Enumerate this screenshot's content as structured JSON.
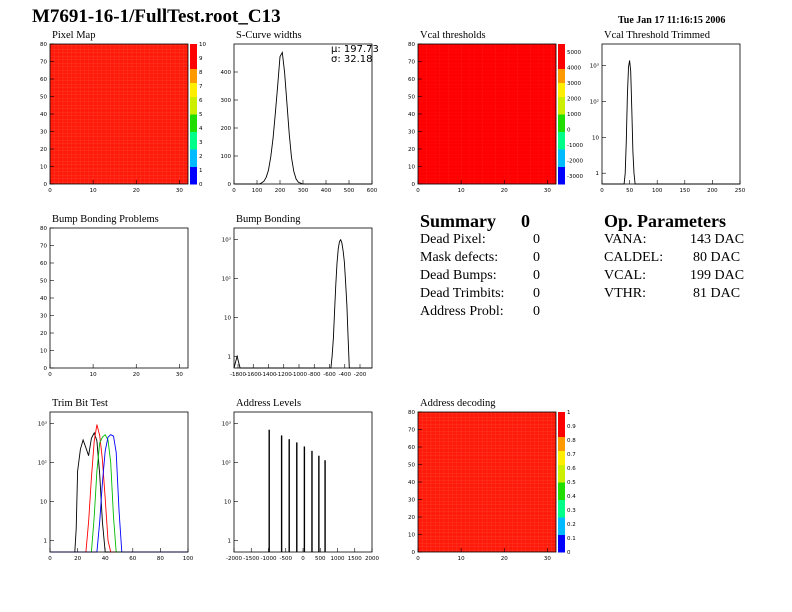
{
  "title": "M7691-16-1/FullTest.root_C13",
  "datestamp": "Tue Jan 17 11:16:15 2006",
  "panels": {
    "pixel_map": "Pixel Map",
    "scurve": "S-Curve widths",
    "vcal_thr": "Vcal thresholds",
    "vcal_trim": "Vcal Threshold Trimmed",
    "bump_problems": "Bump Bonding Problems",
    "bump": "Bump Bonding",
    "trim_bit": "Trim Bit Test",
    "addr_levels": "Address Levels",
    "addr_decoding": "Address decoding"
  },
  "scurve_stats": {
    "mu": "μ: 197.73",
    "sigma": "σ: 32.18"
  },
  "summary": {
    "title": "Summary",
    "total": "0",
    "rows": [
      {
        "label": "Dead Pixel:",
        "value": "0"
      },
      {
        "label": "Mask defects:",
        "value": "0"
      },
      {
        "label": "Dead Bumps:",
        "value": "0"
      },
      {
        "label": "Dead Trimbits:",
        "value": "0"
      },
      {
        "label": "Address Probl:",
        "value": "0"
      }
    ]
  },
  "op_parameters": {
    "title": "Op. Parameters",
    "rows": [
      {
        "label": "VANA:",
        "value": "143 DAC"
      },
      {
        "label": "CALDEL:",
        "value": "80 DAC"
      },
      {
        "label": "VCAL:",
        "value": "199 DAC"
      },
      {
        "label": "VTHR:",
        "value": "81 DAC"
      }
    ]
  },
  "chart_data": [
    {
      "id": "pixel_map",
      "type": "heatmap",
      "title": "Pixel Map",
      "xlim": [
        0,
        32
      ],
      "ylim": [
        0,
        80
      ],
      "zlim": [
        0,
        10
      ],
      "xticks": [
        "0",
        "10",
        "20",
        "30"
      ],
      "yticks": [
        "0",
        "10",
        "20",
        "30",
        "40",
        "50",
        "60",
        "70",
        "80"
      ],
      "zticks": [
        "0",
        "1",
        "2",
        "3",
        "4",
        "5",
        "6",
        "7",
        "8",
        "9",
        "10"
      ],
      "cell_value": 10,
      "uniform": true
    },
    {
      "id": "scurve",
      "type": "line",
      "title": "S-Curve widths",
      "xlim": [
        0,
        600
      ],
      "ylim": [
        0,
        500
      ],
      "xticks": [
        "0",
        "100",
        "200",
        "300",
        "400",
        "500",
        "600"
      ],
      "yticks": [
        "0",
        "100",
        "200",
        "300",
        "400"
      ],
      "series": [
        {
          "color": "#000000",
          "x": [
            0,
            110,
            120,
            130,
            140,
            150,
            160,
            170,
            180,
            190,
            200,
            210,
            220,
            230,
            240,
            250,
            260,
            270,
            280,
            300,
            600
          ],
          "y": [
            0,
            0,
            4,
            10,
            24,
            50,
            98,
            165,
            255,
            352,
            455,
            470,
            398,
            290,
            180,
            95,
            45,
            18,
            6,
            0,
            0
          ]
        }
      ]
    },
    {
      "id": "vcal_thr",
      "type": "heatmap",
      "title": "Vcal thresholds",
      "xlim": [
        0,
        32
      ],
      "ylim": [
        0,
        80
      ],
      "zlim": [
        -3500,
        5500
      ],
      "xticks": [
        "0",
        "10",
        "20",
        "30"
      ],
      "yticks": [
        "0",
        "10",
        "20",
        "30",
        "40",
        "50",
        "60",
        "70",
        "80"
      ],
      "zticks": [
        "-3000",
        "-2000",
        "-1000",
        "0",
        "1000",
        "2000",
        "3000",
        "4000",
        "5000"
      ],
      "cell_value_range": [
        4500,
        5200
      ]
    },
    {
      "id": "vcal_trim",
      "type": "line",
      "title": "Vcal Threshold Trimmed",
      "ylog": true,
      "xlim": [
        0,
        250
      ],
      "ylim": [
        0.5,
        4000
      ],
      "xticks": [
        "0",
        "50",
        "100",
        "150",
        "200",
        "250"
      ],
      "yticks": [
        "1",
        "10",
        "10²",
        "10³"
      ],
      "series": [
        {
          "color": "#000000",
          "x": [
            0,
            40,
            42,
            44,
            46,
            48,
            50,
            52,
            54,
            56,
            58,
            60,
            250
          ],
          "y": [
            0.5,
            0.5,
            1,
            8,
            150,
            900,
            1400,
            700,
            60,
            4,
            1,
            0.5,
            0.5
          ]
        }
      ]
    },
    {
      "id": "bump_problems",
      "type": "heatmap",
      "title": "Bump Bonding Problems",
      "xlim": [
        0,
        32
      ],
      "ylim": [
        0,
        80
      ],
      "xticks": [
        "0",
        "10",
        "20",
        "30"
      ],
      "yticks": [
        "0",
        "10",
        "20",
        "30",
        "40",
        "50",
        "60",
        "70",
        "80"
      ],
      "empty": true
    },
    {
      "id": "bump",
      "type": "line",
      "title": "Bump Bonding",
      "ylog": true,
      "xlim": [
        -2000,
        250
      ],
      "ylim": [
        0.5,
        2000
      ],
      "xticks": [
        "-1800",
        "-1600",
        "-1400",
        "-1200",
        "-1000",
        "-800",
        "-600",
        "-400",
        "-200"
      ],
      "yticks": [
        "1",
        "10",
        "10²",
        "10³"
      ],
      "series": [
        {
          "color": "#000000",
          "x": [
            -2000,
            -1950,
            -1900,
            -1800,
            -600,
            -420,
            -400,
            -380,
            -360,
            -340,
            -320,
            -300,
            -280,
            -260,
            -240,
            -220,
            -200,
            -180,
            -160,
            -140,
            -120,
            250
          ],
          "y": [
            0.5,
            1,
            0.5,
            0.5,
            0.5,
            0.5,
            1,
            3,
            15,
            70,
            250,
            600,
            900,
            1000,
            820,
            500,
            260,
            80,
            20,
            3,
            0.5,
            0.5
          ]
        }
      ]
    },
    {
      "id": "trim_bit",
      "type": "line",
      "title": "Trim Bit Test",
      "ylog": true,
      "xlim": [
        0,
        100
      ],
      "ylim": [
        0.5,
        2000
      ],
      "xticks": [
        "0",
        "20",
        "40",
        "60",
        "80",
        "100"
      ],
      "yticks": [
        "1",
        "10",
        "10²",
        "10³"
      ],
      "series": [
        {
          "color": "#000000",
          "x": [
            0,
            18,
            19,
            20,
            22,
            24,
            26,
            28,
            30,
            32,
            34,
            36,
            38,
            40,
            100
          ],
          "y": [
            0.5,
            0.5,
            2,
            60,
            220,
            380,
            240,
            150,
            420,
            580,
            360,
            50,
            3,
            0.5,
            0.5
          ]
        },
        {
          "color": "#ff0000",
          "x": [
            0,
            26,
            28,
            30,
            32,
            34,
            36,
            38,
            40,
            42,
            44,
            100
          ],
          "y": [
            0.5,
            0.5,
            3,
            40,
            350,
            950,
            500,
            120,
            12,
            1,
            0.5,
            0.5
          ]
        },
        {
          "color": "#00bb00",
          "x": [
            0,
            30,
            32,
            34,
            36,
            38,
            40,
            42,
            44,
            46,
            48,
            100
          ],
          "y": [
            0.5,
            0.5,
            4,
            60,
            320,
            450,
            520,
            380,
            100,
            4,
            0.5,
            0.5
          ]
        },
        {
          "color": "#0000ff",
          "x": [
            0,
            34,
            36,
            38,
            40,
            42,
            44,
            46,
            48,
            50,
            52,
            100
          ],
          "y": [
            0.5,
            0.5,
            3,
            30,
            200,
            450,
            520,
            480,
            180,
            6,
            0.5,
            0.5
          ]
        }
      ]
    },
    {
      "id": "addr_levels",
      "type": "bar",
      "title": "Address Levels",
      "ylog": true,
      "xlim": [
        -2000,
        2000
      ],
      "ylim": [
        0.5,
        2000
      ],
      "xticks": [
        "-2000",
        "-1500",
        "-1000",
        "-500",
        "0",
        "500",
        "1000",
        "1500",
        "2000"
      ],
      "yticks": [
        "1",
        "10",
        "10²",
        "10³"
      ],
      "peaks": [
        {
          "x": -980,
          "y": 700
        },
        {
          "x": -620,
          "y": 500
        },
        {
          "x": -400,
          "y": 400
        },
        {
          "x": -180,
          "y": 330
        },
        {
          "x": 40,
          "y": 260
        },
        {
          "x": 260,
          "y": 200
        },
        {
          "x": 460,
          "y": 150
        },
        {
          "x": 640,
          "y": 115
        }
      ]
    },
    {
      "id": "addr_decoding",
      "type": "heatmap",
      "title": "Address decoding",
      "xlim": [
        0,
        32
      ],
      "ylim": [
        0,
        80
      ],
      "zlim": [
        0,
        1
      ],
      "xticks": [
        "0",
        "10",
        "20",
        "30"
      ],
      "yticks": [
        "0",
        "10",
        "20",
        "30",
        "40",
        "50",
        "60",
        "70",
        "80"
      ],
      "zticks": [
        "0",
        "0.1",
        "0.2",
        "0.3",
        "0.4",
        "0.5",
        "0.6",
        "0.7",
        "0.8",
        "0.9",
        "1"
      ],
      "cell_value": 1,
      "uniform": true
    }
  ]
}
